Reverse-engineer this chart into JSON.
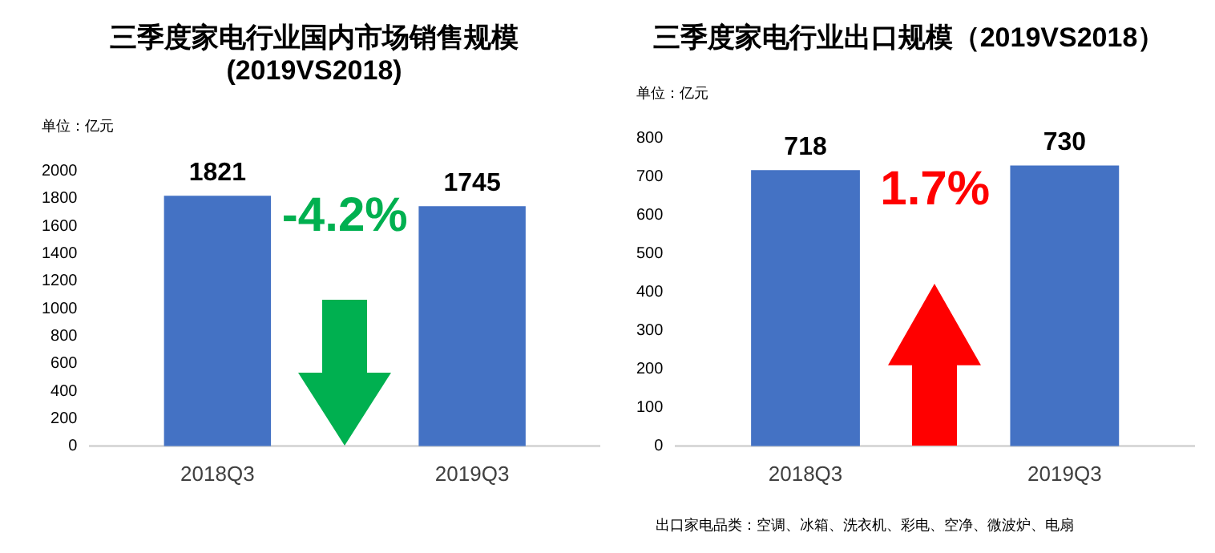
{
  "chart_data": [
    {
      "type": "bar",
      "title": "三季度家电行业国内市场销售规模\n(2019VS2018)",
      "ylabel": "单位：亿元",
      "categories": [
        "2018Q3",
        "2019Q3"
      ],
      "values": [
        1821,
        1745
      ],
      "color": "#4472c4",
      "ylim": [
        0,
        2000
      ],
      "yticks": [
        0,
        200,
        400,
        600,
        800,
        1000,
        1200,
        1400,
        1600,
        1800,
        2000
      ],
      "grid": false,
      "data_labels": true,
      "annotations": [
        "-4.2%"
      ]
    },
    {
      "type": "bar",
      "title": "三季度家电行业出口规模（2019VS2018）",
      "ylabel": "单位：亿元",
      "categories": [
        "2018Q3",
        "2019Q3"
      ],
      "values": [
        718,
        730
      ],
      "color": "#4472c4",
      "ylim": [
        0,
        800
      ],
      "yticks": [
        0,
        100,
        200,
        300,
        400,
        500,
        600,
        700,
        800
      ],
      "grid": false,
      "data_labels": true,
      "annotations": [
        "1.7%",
        "出口家电品类：空调、冰箱、洗衣机、彩电、空净、微波炉、电扇"
      ]
    }
  ]
}
